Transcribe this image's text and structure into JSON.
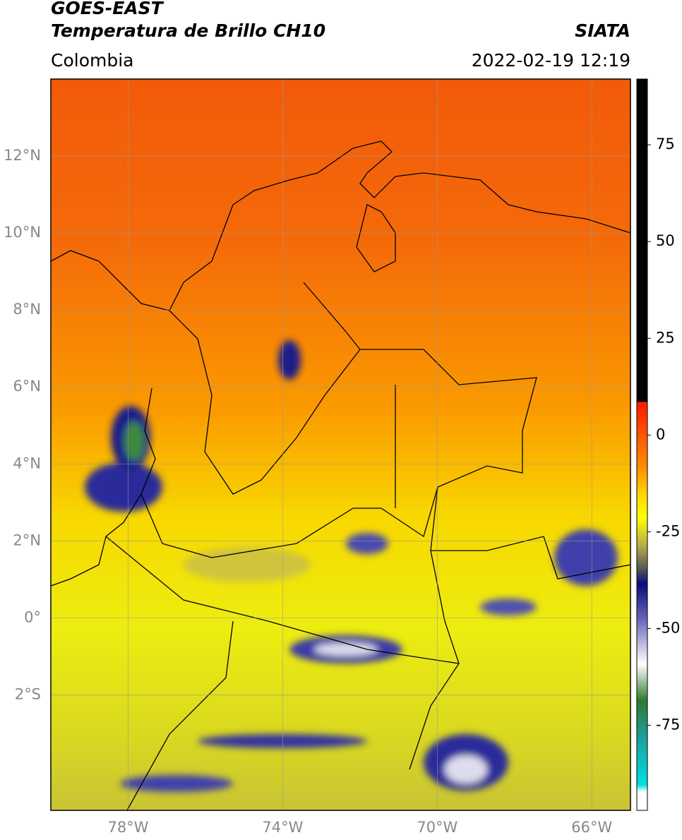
{
  "header": {
    "title_line1": "GOES-EAST",
    "title_line2": "Temperatura de Brillo CH10",
    "source": "SIATA",
    "region": "Colombia",
    "datetime": "2022-02-19 12:19"
  },
  "map": {
    "lonlim": [
      -80,
      -65
    ],
    "latlim": [
      -5,
      14
    ],
    "lon_ticks": [
      {
        "value": -78,
        "label": "78°W"
      },
      {
        "value": -74,
        "label": "74°W"
      },
      {
        "value": -70,
        "label": "70°W"
      },
      {
        "value": -66,
        "label": "66°W"
      }
    ],
    "lat_ticks": [
      {
        "value": 12,
        "label": "12°N"
      },
      {
        "value": 10,
        "label": "10°N"
      },
      {
        "value": 8,
        "label": "8°N"
      },
      {
        "value": 6,
        "label": "6°N"
      },
      {
        "value": 4,
        "label": "4°N"
      },
      {
        "value": 2,
        "label": "2°N"
      },
      {
        "value": 0,
        "label": "0°"
      },
      {
        "value": -2,
        "label": "2°S"
      }
    ],
    "grid": true
  },
  "colorbar": {
    "lim": [
      -97,
      92
    ],
    "ticks": [
      75,
      50,
      25,
      0,
      -25,
      -50,
      -75
    ]
  }
}
